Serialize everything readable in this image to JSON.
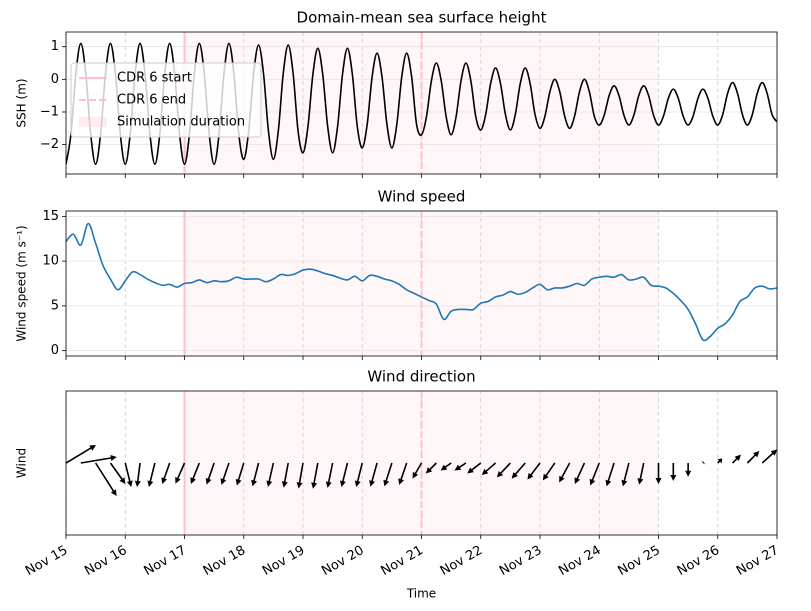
{
  "chart_data": [
    {
      "type": "line",
      "title": "Domain-mean sea surface height",
      "ylabel": "SSH (m)",
      "color": "#000000",
      "x": [
        0,
        2,
        4,
        6,
        8,
        10,
        12,
        14,
        16,
        18,
        20,
        22,
        24,
        26,
        28,
        30,
        32,
        34,
        36,
        38,
        40,
        42,
        44,
        46,
        48,
        50,
        52,
        54,
        56,
        58,
        60,
        62,
        64,
        66,
        68,
        70,
        72,
        74,
        76,
        78,
        80,
        82,
        84,
        86,
        88,
        90,
        92,
        94,
        96,
        98,
        100,
        102,
        104,
        106,
        108,
        110,
        112,
        114,
        116,
        118,
        120,
        122,
        124,
        126,
        128,
        130,
        132,
        134,
        136,
        138,
        140,
        142,
        144,
        146,
        148,
        150,
        152,
        154,
        156,
        158,
        160,
        162,
        164,
        166,
        168,
        170,
        172,
        174,
        176,
        178,
        180,
        182,
        184,
        186,
        188,
        190,
        192,
        194,
        196,
        198,
        200,
        202,
        204,
        206,
        208,
        210,
        212,
        214,
        216,
        218,
        220,
        222,
        224,
        226,
        228,
        230,
        232,
        234,
        236,
        238,
        240,
        242,
        244,
        246,
        248,
        250,
        252,
        254,
        256,
        258,
        260,
        262,
        264,
        266,
        268,
        270,
        272,
        274,
        276,
        278,
        280,
        282,
        284,
        286,
        288
      ],
      "values": [
        -2.6,
        -1.68,
        0.18,
        1.1,
        0.18,
        -1.68,
        -2.6,
        -1.68,
        0.18,
        1.1,
        0.18,
        -1.68,
        -2.6,
        -1.68,
        0.18,
        1.1,
        0.18,
        -1.68,
        -2.6,
        -1.68,
        0.18,
        1.1,
        0.18,
        -1.68,
        -2.6,
        -1.68,
        0.18,
        1.1,
        0.18,
        -1.68,
        -2.6,
        -1.68,
        0.18,
        1.1,
        0.18,
        -1.68,
        -2.45,
        -1.58,
        0.18,
        1.05,
        0.18,
        -1.58,
        -2.45,
        -1.58,
        0.18,
        1.05,
        0.18,
        -1.58,
        -2.25,
        -1.45,
        0.15,
        0.95,
        0.15,
        -1.45,
        -2.25,
        -1.45,
        0.15,
        0.95,
        0.15,
        -1.45,
        -2.1,
        -1.38,
        0.08,
        0.8,
        0.08,
        -1.38,
        -2.1,
        -1.38,
        0.08,
        0.8,
        0.08,
        -1.38,
        -1.7,
        -1.15,
        -0.05,
        0.5,
        -0.05,
        -1.15,
        -1.7,
        -1.15,
        -0.05,
        0.5,
        -0.05,
        -1.15,
        -1.55,
        -1.08,
        -0.13,
        0.35,
        -0.13,
        -1.08,
        -1.55,
        -1.08,
        -0.13,
        0.35,
        -0.13,
        -1.08,
        -1.5,
        -1.13,
        -0.38,
        0,
        -0.38,
        -1.13,
        -1.5,
        -1.13,
        -0.38,
        0,
        -0.38,
        -1.13,
        -1.4,
        -1.1,
        -0.5,
        -0.2,
        -0.5,
        -1.1,
        -1.4,
        -1.1,
        -0.5,
        -0.2,
        -0.5,
        -1.1,
        -1.4,
        -1.13,
        -0.58,
        -0.3,
        -0.58,
        -1.13,
        -1.4,
        -1.13,
        -0.58,
        -0.3,
        -0.58,
        -1.13,
        -1.4,
        -1.08,
        -0.43,
        -0.1,
        -0.43,
        -1.08,
        -1.4,
        -1.08,
        -0.43,
        -0.1,
        -0.43,
        -1.08,
        -1.3
      ],
      "ylim": [
        -2.9,
        1.45
      ],
      "yticks": [
        {
          "value": -2,
          "label": "−2"
        },
        {
          "value": -1,
          "label": "−1"
        },
        0,
        1
      ],
      "grid": true,
      "legend": "center left",
      "vlines": [
        {
          "name": "CDR 6 start",
          "x": 48,
          "color": "#ffc0cb",
          "style": "solid"
        },
        {
          "name": "CDR 6 end",
          "x": 144,
          "color": "#ffc0cb",
          "style": "dashed"
        }
      ],
      "spans": [
        {
          "name": "Simulation duration",
          "x": [
            48,
            240
          ],
          "color": "#ffc0cb"
        }
      ]
    },
    {
      "type": "line",
      "title": "Wind speed",
      "ylabel": "Wind speed (m s⁻¹)",
      "color": "#1f77b4",
      "x": [
        0,
        3,
        6,
        9,
        12,
        15,
        18,
        21,
        24,
        27,
        30,
        33,
        36,
        39,
        42,
        45,
        48,
        51,
        54,
        57,
        60,
        63,
        66,
        69,
        72,
        75,
        78,
        81,
        84,
        87,
        90,
        93,
        96,
        99,
        102,
        105,
        108,
        111,
        114,
        117,
        120,
        123,
        126,
        129,
        132,
        135,
        138,
        141,
        144,
        147,
        150,
        153,
        156,
        159,
        162,
        165,
        168,
        171,
        174,
        177,
        180,
        183,
        186,
        189,
        192,
        195,
        198,
        201,
        204,
        207,
        210,
        213,
        216,
        219,
        222,
        225,
        228,
        231,
        234,
        237,
        240,
        243,
        246,
        249,
        252,
        255,
        258,
        261,
        264,
        267,
        270,
        273,
        276,
        279,
        282,
        285,
        288
      ],
      "values": [
        12.2,
        13,
        11.8,
        14.2,
        12,
        9.5,
        8,
        6.8,
        7.8,
        8.8,
        8.5,
        8,
        7.6,
        7.3,
        7.4,
        7.1,
        7.5,
        7.6,
        7.9,
        7.6,
        7.8,
        7.7,
        7.8,
        8.2,
        8,
        8,
        8,
        7.7,
        8,
        8.5,
        8.4,
        8.6,
        9,
        9.1,
        8.9,
        8.6,
        8.4,
        8.1,
        7.9,
        8.3,
        7.8,
        8.4,
        8.3,
        8,
        7.8,
        7.4,
        6.8,
        6.4,
        6,
        5.6,
        5.2,
        3.5,
        4.4,
        4.6,
        4.6,
        4.6,
        5.3,
        5.5,
        6,
        6.2,
        6.6,
        6.3,
        6.5,
        7,
        7.4,
        6.8,
        7,
        7,
        7.2,
        7.5,
        7.3,
        8,
        8.2,
        8.3,
        8.2,
        8.5,
        7.9,
        8,
        8.2,
        7.3,
        7.2,
        7,
        6.4,
        5.6,
        4.6,
        3,
        1.2,
        1.6,
        2.5,
        3,
        4,
        5.5,
        6,
        7,
        7.2,
        6.9,
        7
      ],
      "ylim": [
        -0.6,
        15.6
      ],
      "yticks": [
        0,
        5,
        10,
        15
      ],
      "grid": true
    },
    {
      "type": "quiver",
      "title": "Wind direction",
      "ylabel": "Wind",
      "xlabel": "Time",
      "color": "#000000",
      "x": [
        0,
        6,
        12,
        18,
        24,
        30,
        36,
        42,
        48,
        54,
        60,
        66,
        72,
        78,
        84,
        90,
        96,
        102,
        108,
        114,
        120,
        126,
        132,
        138,
        144,
        150,
        156,
        162,
        168,
        174,
        180,
        186,
        192,
        198,
        204,
        210,
        216,
        222,
        228,
        234,
        240,
        246,
        252,
        258,
        264,
        270,
        276,
        282,
        288
      ],
      "u": [
        10,
        12,
        7,
        5,
        2,
        -1,
        -2,
        -2.5,
        -3,
        -2.8,
        -2.5,
        -2.5,
        -2.3,
        -2,
        -1.8,
        -1.5,
        -1.5,
        -1.6,
        -1.7,
        -2,
        -2,
        -2.2,
        -2.5,
        -2.5,
        -3,
        -3.5,
        -3.5,
        -3.8,
        -4.5,
        -4.6,
        -4.5,
        -4.5,
        -4.2,
        -4,
        -3.5,
        -3.2,
        -3,
        -2.5,
        -2,
        -1.5,
        0,
        0,
        0,
        0.3,
        1.5,
        2.8,
        4,
        5,
        5
      ],
      "v": [
        6,
        2,
        -11,
        -7,
        -8,
        -8,
        -8,
        -7,
        -6.9,
        -7,
        -7.2,
        -7.3,
        -7.5,
        -7.8,
        -8,
        -8.2,
        -8.5,
        -8.6,
        -8.3,
        -8,
        -8,
        -7.9,
        -7.8,
        -7.3,
        -5.2,
        -3.5,
        -2.5,
        -2.5,
        -3.5,
        -4,
        -4.8,
        -5.2,
        -5.5,
        -5.8,
        -6.5,
        -7,
        -7.5,
        -7.8,
        -7.8,
        -7.2,
        -7,
        -6,
        -4.6,
        0.3,
        1.5,
        2.8,
        4,
        4.5,
        5
      ],
      "xlim": [
        0,
        288
      ],
      "xticks": [
        {
          "value": 0,
          "label": "Nov 15"
        },
        {
          "value": 24,
          "label": "Nov 16"
        },
        {
          "value": 48,
          "label": "Nov 17"
        },
        {
          "value": 72,
          "label": "Nov 18"
        },
        {
          "value": 96,
          "label": "Nov 19"
        },
        {
          "value": 120,
          "label": "Nov 20"
        },
        {
          "value": 144,
          "label": "Nov 21"
        },
        {
          "value": 168,
          "label": "Nov 22"
        },
        {
          "value": 192,
          "label": "Nov 23"
        },
        {
          "value": 216,
          "label": "Nov 24"
        },
        {
          "value": 240,
          "label": "Nov 25"
        },
        {
          "value": 264,
          "label": "Nov 26"
        },
        {
          "value": 288,
          "label": "Nov 27"
        }
      ],
      "grid": "x"
    }
  ]
}
